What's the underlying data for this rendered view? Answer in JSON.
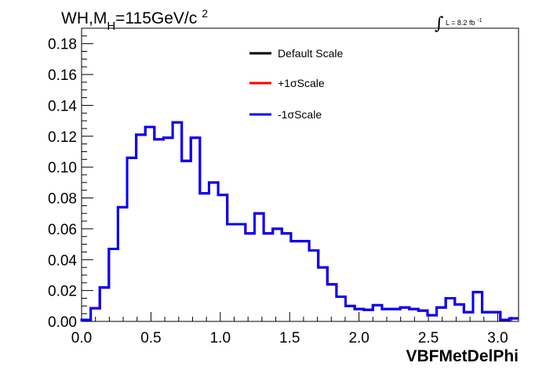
{
  "chart_data": {
    "type": "line",
    "title_main": "WH,M",
    "title_sub": "H",
    "title_rest": "=115GeV/c",
    "title_sup": "2",
    "lumi_label": "L = 8.2 fb",
    "lumi_sup": "-1",
    "xlabel": "VBFMetDelPhi",
    "xlim": [
      0.0,
      3.15
    ],
    "ylim": [
      0.0,
      0.19
    ],
    "x_ticks": [
      "0.0",
      "0.5",
      "1.0",
      "1.5",
      "2.0",
      "2.5",
      "3.0"
    ],
    "y_ticks": [
      "0.00",
      "0.02",
      "0.04",
      "0.06",
      "0.08",
      "0.10",
      "0.12",
      "0.14",
      "0.16",
      "0.18"
    ],
    "bin_edges": [
      0.0,
      0.0656,
      0.1313,
      0.1969,
      0.2625,
      0.3281,
      0.3938,
      0.4594,
      0.525,
      0.5906,
      0.6563,
      0.7219,
      0.7875,
      0.8531,
      0.9188,
      0.9844,
      1.05,
      1.1156,
      1.1813,
      1.2469,
      1.3125,
      1.3781,
      1.4438,
      1.5094,
      1.575,
      1.6406,
      1.7063,
      1.7719,
      1.8375,
      1.9031,
      1.9688,
      2.0344,
      2.1,
      2.1656,
      2.2313,
      2.2969,
      2.3625,
      2.4281,
      2.4938,
      2.5594,
      2.625,
      2.6906,
      2.7563,
      2.8219,
      2.8875,
      2.9531,
      3.0188,
      3.0844,
      3.15
    ],
    "legend": [
      {
        "label": "Default Scale",
        "color": "#000000"
      },
      {
        "label": "+1σScale",
        "color": "#ff0000"
      },
      {
        "label": "-1σScale",
        "color": "#0000ff"
      }
    ],
    "series": [
      {
        "name": "Default Scale",
        "color": "#000000",
        "values": [
          0.001,
          0.0085,
          0.022,
          0.047,
          0.074,
          0.106,
          0.121,
          0.126,
          0.118,
          0.119,
          0.129,
          0.104,
          0.119,
          0.083,
          0.09,
          0.082,
          0.063,
          0.063,
          0.057,
          0.07,
          0.057,
          0.06,
          0.057,
          0.052,
          0.052,
          0.046,
          0.035,
          0.024,
          0.016,
          0.01,
          0.008,
          0.0075,
          0.0105,
          0.008,
          0.008,
          0.009,
          0.008,
          0.007,
          0.004,
          0.009,
          0.015,
          0.011,
          0.006,
          0.019,
          0.006,
          0.006,
          0.001,
          0.002
        ]
      },
      {
        "name": "+1σScale",
        "color": "#ff0000",
        "values": [
          0.001,
          0.0085,
          0.022,
          0.047,
          0.074,
          0.106,
          0.121,
          0.126,
          0.118,
          0.119,
          0.129,
          0.104,
          0.119,
          0.083,
          0.09,
          0.082,
          0.063,
          0.063,
          0.057,
          0.07,
          0.057,
          0.06,
          0.057,
          0.052,
          0.052,
          0.046,
          0.035,
          0.024,
          0.016,
          0.01,
          0.008,
          0.0075,
          0.0105,
          0.008,
          0.008,
          0.009,
          0.008,
          0.007,
          0.004,
          0.009,
          0.015,
          0.011,
          0.006,
          0.019,
          0.006,
          0.006,
          0.001,
          0.002
        ]
      },
      {
        "name": "-1σScale",
        "color": "#0000ff",
        "values": [
          0.001,
          0.0085,
          0.022,
          0.047,
          0.074,
          0.106,
          0.121,
          0.126,
          0.118,
          0.119,
          0.129,
          0.104,
          0.119,
          0.083,
          0.09,
          0.082,
          0.063,
          0.063,
          0.057,
          0.07,
          0.057,
          0.06,
          0.057,
          0.052,
          0.052,
          0.046,
          0.035,
          0.024,
          0.016,
          0.01,
          0.008,
          0.0075,
          0.0105,
          0.008,
          0.008,
          0.009,
          0.008,
          0.007,
          0.004,
          0.009,
          0.015,
          0.011,
          0.006,
          0.019,
          0.006,
          0.006,
          0.001,
          0.002
        ]
      }
    ],
    "grid": false,
    "legend_position": "top-center"
  }
}
